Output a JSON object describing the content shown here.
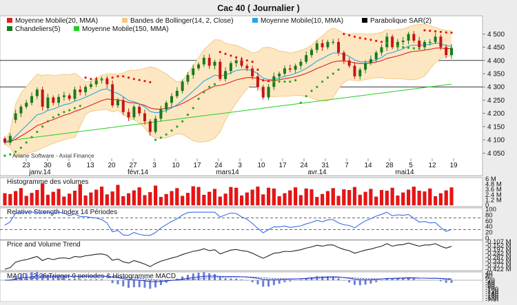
{
  "title": "Cac 40  ( Journalier )",
  "legend": [
    {
      "name": "Moyenne Mobile(20, MMA)",
      "color": "#e01e1e"
    },
    {
      "name": "Bandes de Bollinger(14, 2, Close)",
      "color": "#f5c97a"
    },
    {
      "name": "Moyenne Mobile(10, MMA)",
      "color": "#1ea8e8"
    },
    {
      "name": "Parabolique SAR(2)",
      "color": "#000000"
    },
    {
      "name": "Chandeliers(5)",
      "color": "#1a7a1a"
    },
    {
      "name": "Moyenne Mobile(150, MMA)",
      "color": "#22d022"
    }
  ],
  "watermark": "Ariane Software - Axial Finance",
  "colors": {
    "up": "#1a7a1a",
    "down": "#c81414",
    "sar_above": "#ee1111",
    "sar_below": "#22aa22",
    "band_fill": "#fde7c2",
    "volume": "#ee1111",
    "rsi": "#3a6ee8",
    "pvt": "#222222",
    "macd": "#1a2fbf"
  },
  "chart_data": [
    {
      "type": "candlestick",
      "ylim": [
        4030,
        4540
      ],
      "y_ticks": [
        "4 500",
        "4 450",
        "4 400",
        "4 350",
        "4 300",
        "4 250",
        "4 200",
        "4 150",
        "4 100",
        "4 050"
      ],
      "x_tick_labels": [
        "23",
        "30",
        "6",
        "13",
        "20",
        "27",
        "3",
        "10",
        "17",
        "24",
        "3",
        "10",
        "17",
        "24",
        "31",
        "7",
        "14",
        "28",
        "5",
        "12",
        "19"
      ],
      "month_labels": [
        "janv.14",
        "févr.14",
        "mars14",
        "avr.14",
        "mai14"
      ],
      "horizontal_lines": [
        4400,
        4300
      ],
      "open": [
        4105,
        4090,
        4175,
        4200,
        4225,
        4240,
        4265,
        4290,
        4220,
        4260,
        4240,
        4262,
        4268,
        4255,
        4290,
        4280,
        4300,
        4310,
        4325,
        4330,
        4310,
        4230,
        4250,
        4205,
        4185,
        4225,
        4200,
        4170,
        4130,
        4180,
        4215,
        4240,
        4265,
        4285,
        4320,
        4345,
        4370,
        4385,
        4410,
        4380,
        4395,
        4330,
        4360,
        4390,
        4400,
        4380,
        4370,
        4340,
        4300,
        4260,
        4300,
        4340,
        4350,
        4370,
        4365,
        4380,
        4395,
        4420,
        4440,
        4465,
        4450,
        4470,
        4470,
        4430,
        4400,
        4380,
        4340,
        4365,
        4390,
        4405,
        4430,
        4450,
        4490,
        4450,
        4470,
        4475,
        4500,
        4475,
        4450,
        4470,
        4470,
        4490,
        4450,
        4420
      ],
      "close": [
        4090,
        4115,
        4200,
        4225,
        4240,
        4265,
        4290,
        4225,
        4260,
        4240,
        4262,
        4268,
        4255,
        4290,
        4280,
        4300,
        4310,
        4325,
        4330,
        4310,
        4230,
        4250,
        4205,
        4185,
        4225,
        4200,
        4170,
        4130,
        4180,
        4215,
        4240,
        4265,
        4285,
        4320,
        4345,
        4370,
        4385,
        4410,
        4380,
        4395,
        4330,
        4360,
        4390,
        4400,
        4380,
        4370,
        4340,
        4300,
        4260,
        4300,
        4340,
        4350,
        4370,
        4365,
        4380,
        4395,
        4420,
        4440,
        4465,
        4450,
        4470,
        4470,
        4430,
        4400,
        4380,
        4340,
        4365,
        4390,
        4405,
        4430,
        4450,
        4490,
        4450,
        4470,
        4475,
        4500,
        4475,
        4450,
        4470,
        4470,
        4490,
        4450,
        4420,
        4448
      ],
      "sar": [
        4040,
        4045,
        4055,
        4070,
        4090,
        4110,
        4130,
        4150,
        4170,
        4185,
        4195,
        4205,
        4212,
        4220,
        4228,
        4335,
        4330,
        4330,
        4330,
        4330,
        4335,
        4340,
        4340,
        4335,
        4330,
        4326,
        4322,
        4318,
        4100,
        4108,
        4120,
        4135,
        4150,
        4170,
        4195,
        4220,
        4255,
        4280,
        4300,
        4310,
        4432,
        4425,
        4418,
        4412,
        4405,
        4400,
        4395,
        4365,
        4325,
        4322,
        4320,
        4320,
        4320,
        4320,
        4325,
        4240,
        4265,
        4285,
        4300,
        4320,
        4335,
        4350,
        4365,
        4500,
        4495,
        4490,
        4485,
        4482,
        4478,
        4474,
        4470,
        4466,
        4460,
        4455,
        4450,
        4448,
        4446,
        4444,
        4514,
        4512,
        4510,
        4508,
        4506,
        4505
      ],
      "volume_max": 6
    },
    {
      "type": "bar",
      "title": "Histogramme des volumes",
      "y_ticks": [
        "6 M",
        "4.8 M",
        "3.6 M",
        "2.4 M",
        "1.2 M",
        "0"
      ]
    },
    {
      "type": "line",
      "title": "Relative Strength Index 14 Périodes",
      "y_ticks": [
        "100",
        "80",
        "60",
        "40",
        "20",
        "0"
      ]
    },
    {
      "type": "line",
      "title": "Price and Volume Trend",
      "y_ticks": [
        "-0.107 M",
        "-0.152 M",
        "-0.197 M",
        "-0.242 M",
        "-0.287 M",
        "-0.332 M",
        "-0.377 M",
        "-0.422 M"
      ]
    },
    {
      "type": "line",
      "title": "MACD 12-26  Trigger 9 periodes & Histogramme MACD",
      "y_ticks": [
        "40",
        "20",
        "0",
        "-20",
        "-40",
        "-60",
        "-80",
        "-100",
        "-120",
        "-140",
        "-160",
        "-180",
        "-200"
      ]
    }
  ]
}
